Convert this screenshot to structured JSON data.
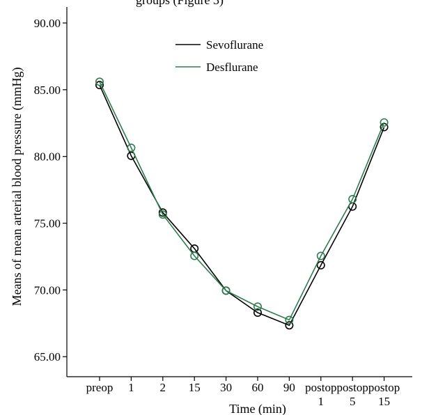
{
  "chart_data": {
    "type": "line",
    "title": "groups (Figure 3)",
    "xlabel": "Time (min)",
    "ylabel": "Means of mean arterial blood pressure (mmHg)",
    "categories": [
      [
        "preop"
      ],
      [
        "1"
      ],
      [
        "2"
      ],
      [
        "15"
      ],
      [
        "30"
      ],
      [
        "60"
      ],
      [
        "90"
      ],
      [
        "postop",
        "1"
      ],
      [
        "postop",
        "5"
      ],
      [
        "postop",
        "15"
      ]
    ],
    "ylim": [
      63.5,
      91.2
    ],
    "yticks": [
      65,
      70,
      75,
      80,
      85,
      90
    ],
    "ytick_labels": [
      "65.00",
      "70.00",
      "75.00",
      "80.00",
      "85.00",
      "90.00"
    ],
    "grid": false,
    "legend_position": "top-center",
    "marker": "open-circle",
    "series": [
      {
        "name": "Sevoflurane",
        "color": "#000000",
        "values": [
          85.35,
          80.05,
          75.8,
          73.1,
          69.95,
          68.3,
          67.35,
          71.85,
          76.25,
          82.2
        ]
      },
      {
        "name": "Desflurane",
        "color": "#2e7d4f",
        "values": [
          85.6,
          80.65,
          75.65,
          72.55,
          69.95,
          68.75,
          67.75,
          72.55,
          76.8,
          82.55
        ]
      }
    ]
  }
}
